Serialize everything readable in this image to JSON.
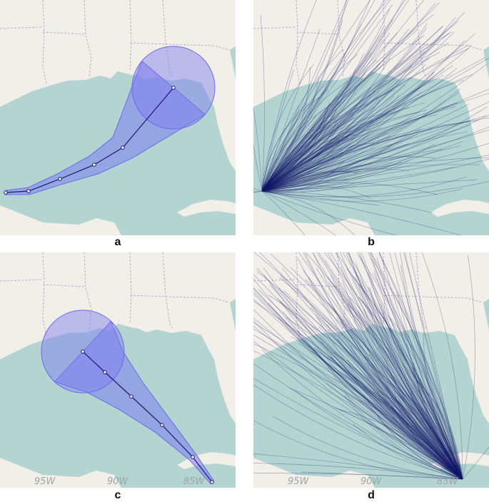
{
  "panels": [
    {
      "id": "a",
      "label": "a",
      "type": "cone",
      "show_lon": false,
      "track": [
        [
          8,
          270
        ],
        [
          40,
          268
        ],
        [
          84,
          251
        ],
        [
          132,
          231
        ],
        [
          172,
          207
        ],
        [
          243,
          123
        ]
      ],
      "radii": [
        3,
        5,
        8,
        14,
        20,
        58
      ]
    },
    {
      "id": "b",
      "label": "b",
      "type": "paths",
      "show_lon": false,
      "origin": [
        367,
        268
      ],
      "spread": "northeast"
    },
    {
      "id": "c",
      "label": "c",
      "type": "cone",
      "show_lon": true,
      "track": [
        [
          297,
          676
        ],
        [
          270,
          641
        ],
        [
          227,
          596
        ],
        [
          184,
          556
        ],
        [
          147,
          522
        ],
        [
          116,
          493
        ]
      ],
      "radii": [
        3,
        6,
        14,
        25,
        38,
        58
      ]
    },
    {
      "id": "d",
      "label": "d",
      "type": "paths",
      "show_lon": true,
      "origin": [
        648,
        672
      ],
      "spread": "northwest"
    }
  ],
  "longitudes": [
    "95W",
    "90W",
    "85W"
  ],
  "colors": {
    "land": "#f2eee8",
    "water": "#b4d4d2",
    "cone_fill": "#7b7bef",
    "cone_edge": "#6a6ae8",
    "track": "#1a1a70",
    "paths": "#141a6a",
    "border": "#c3a8cf"
  }
}
